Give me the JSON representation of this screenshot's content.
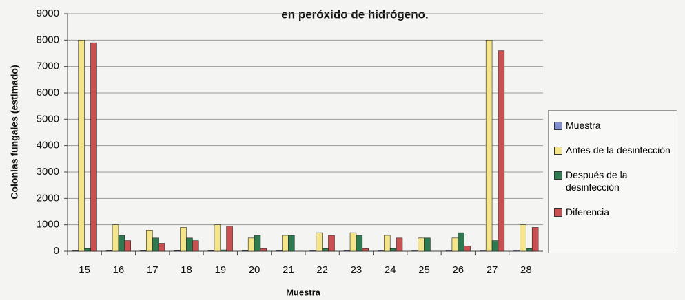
{
  "chart_data": {
    "type": "bar",
    "title": "en peróxido de hidrógeno.",
    "x_label": "Muestra",
    "y_label": "Colonias fungales (estimado)",
    "categories": [
      "15",
      "16",
      "17",
      "18",
      "19",
      "20",
      "21",
      "22",
      "23",
      "24",
      "25",
      "26",
      "27",
      "28"
    ],
    "series": [
      {
        "name": "Muestra",
        "color": "#7f8fcf",
        "values": [
          15,
          16,
          17,
          18,
          19,
          20,
          21,
          22,
          23,
          24,
          25,
          26,
          27,
          28
        ]
      },
      {
        "name": "Antes de la desinfección",
        "color": "#f4e58a",
        "values": [
          8000,
          1000,
          800,
          900,
          1000,
          500,
          600,
          700,
          700,
          600,
          500,
          500,
          8000,
          1000
        ]
      },
      {
        "name": "Después de la desinfección",
        "color": "#2e7a50",
        "values": [
          100,
          600,
          500,
          500,
          50,
          600,
          600,
          100,
          600,
          100,
          500,
          700,
          400,
          100
        ]
      },
      {
        "name": "Diferencia",
        "color": "#c85050",
        "values": [
          7900,
          400,
          300,
          400,
          950,
          100,
          0,
          600,
          100,
          500,
          0,
          200,
          7600,
          900
        ]
      }
    ],
    "ylim": [
      0,
      9000
    ],
    "yticks": [
      0,
      1000,
      2000,
      3000,
      4000,
      5000,
      6000,
      7000,
      8000,
      9000
    ],
    "grid": true
  }
}
